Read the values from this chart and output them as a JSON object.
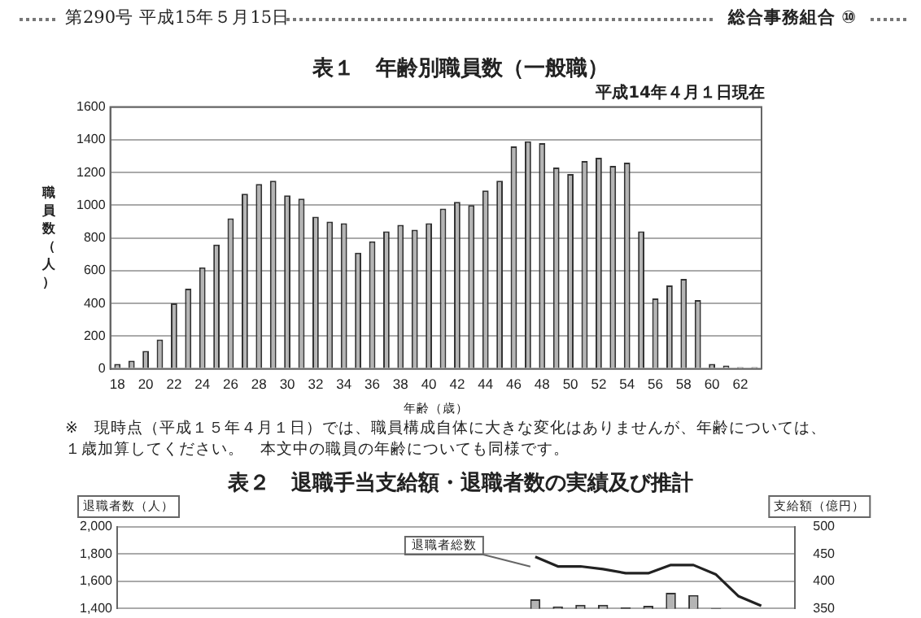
{
  "chart_data": [
    {
      "type": "bar",
      "title": "表１　年齢別職員数（一般職）",
      "subtitle": "平成14年４月１日現在",
      "xlabel": "年齢（歳）",
      "ylabel": "職員数（人）",
      "annotations": [
        "第290号 平成15年５月15日",
        "総合事務組合 ⑩",
        "※　現時点（平成１５年４月１日）では、職員構成自体に大きな変化はありませんが、年齢については、１歳加算してください。　本文中の職員の年齢についても同様です。"
      ],
      "categories": [
        "18",
        null,
        "20",
        null,
        "22",
        null,
        "24",
        null,
        "26",
        null,
        "28",
        null,
        "30",
        null,
        "32",
        null,
        "34",
        null,
        "36",
        null,
        "38",
        null,
        "40",
        null,
        "42",
        null,
        "44",
        null,
        "46",
        null,
        "48",
        null,
        "50",
        null,
        "52",
        null,
        "54",
        null,
        "56",
        null,
        "58",
        null,
        "60",
        null,
        "62",
        null
      ],
      "values": [
        30,
        50,
        110,
        180,
        400,
        490,
        620,
        760,
        920,
        1070,
        1130,
        1150,
        1060,
        1040,
        930,
        900,
        890,
        710,
        780,
        840,
        880,
        850,
        890,
        980,
        1020,
        1000,
        1090,
        1150,
        1360,
        1390,
        1380,
        1230,
        1190,
        1270,
        1290,
        1240,
        1260,
        840,
        430,
        510,
        550,
        420,
        30,
        20,
        10,
        10
      ],
      "color": "#b4b4b4",
      "ylim": [
        0,
        1600
      ],
      "yticks": [
        0,
        200,
        400,
        600,
        800,
        1000,
        1200,
        1400,
        1600
      ],
      "grid": "y"
    },
    {
      "type": "bar",
      "title": "表２　退職手当支給額・退職者数の実績及び推計",
      "ylabel": "退職者数（人）",
      "y2label": "支給額（億円）",
      "annotations": [
        "退職者総数"
      ],
      "categories": [
        null,
        null,
        null,
        null,
        null,
        null,
        null,
        null,
        null,
        null,
        null,
        null,
        null,
        null,
        null,
        null,
        null,
        null,
        null,
        null,
        null,
        null,
        null,
        null,
        null,
        null,
        null,
        null,
        null,
        null
      ],
      "series": [
        {
          "type": "line",
          "color": "#222222",
          "values": [
            null,
            null,
            null,
            null,
            null,
            null,
            null,
            null,
            null,
            null,
            null,
            null,
            null,
            null,
            null,
            null,
            null,
            null,
            1780,
            1710,
            1710,
            1690,
            1660,
            1660,
            1720,
            1720,
            1650,
            1490,
            1420,
            null
          ]
        },
        {
          "axis": "y2",
          "color": "#b4b4b4",
          "values": [
            null,
            null,
            null,
            null,
            null,
            null,
            null,
            null,
            null,
            null,
            null,
            null,
            null,
            null,
            null,
            null,
            null,
            null,
            367,
            354,
            357,
            357,
            352,
            355,
            379,
            375,
            351,
            null,
            null,
            null
          ]
        }
      ],
      "marker": "none",
      "ylim": [
        1400,
        2000
      ],
      "yticks": [
        {
          "value": 1400,
          "label": "1,400"
        },
        {
          "value": 1600,
          "label": "1,600"
        },
        {
          "value": 1800,
          "label": "1,800"
        },
        {
          "value": 2000,
          "label": "2,000"
        }
      ],
      "y2lim": [
        350,
        500
      ],
      "y2ticks": [
        350,
        400,
        450,
        500
      ],
      "grid": "y"
    }
  ]
}
